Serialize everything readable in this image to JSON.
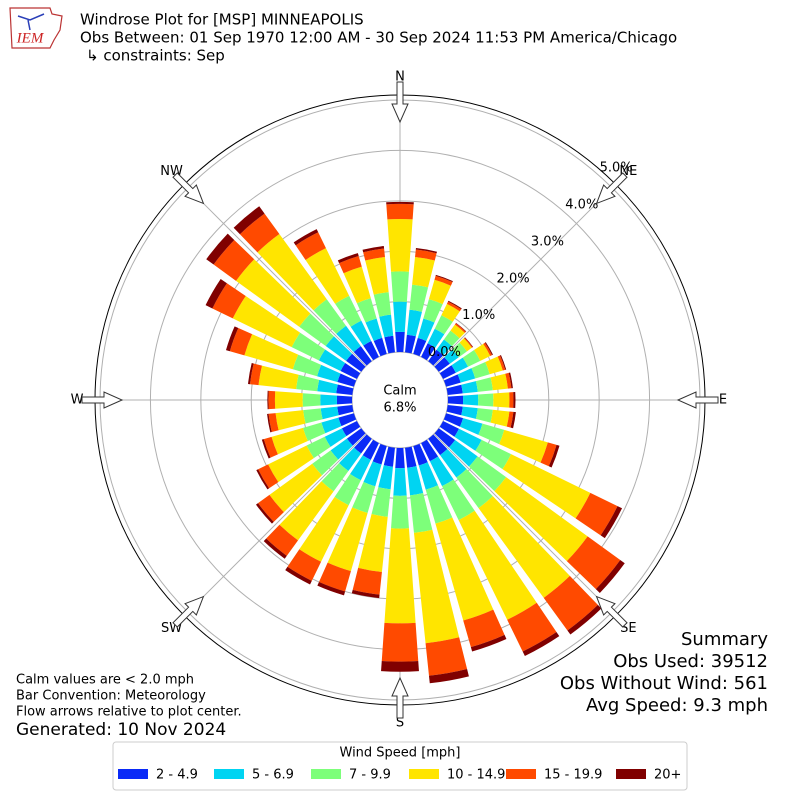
{
  "logo_text": "IEM",
  "chart_data": {
    "type": "windrose",
    "title": "Windrose Plot for [MSP] MINNEAPOLIS",
    "subtitle": "Obs Between: 01 Sep 1970 12:00 AM - 30 Sep 2024 11:53 PM America/Chicago",
    "constraints": "↳ constraints: Sep",
    "calm": {
      "label": "Calm",
      "value": 6.8,
      "value_label": "6.8%"
    },
    "x": [
      0,
      10,
      20,
      30,
      40,
      50,
      60,
      70,
      80,
      90,
      100,
      110,
      120,
      130,
      140,
      150,
      160,
      170,
      180,
      190,
      200,
      210,
      220,
      230,
      240,
      250,
      260,
      270,
      280,
      290,
      300,
      310,
      320,
      330,
      340,
      350
    ],
    "xlim": [
      0,
      360
    ],
    "xticks": [
      {
        "value": 0,
        "label": "N"
      },
      {
        "value": 45,
        "label": "NE"
      },
      {
        "value": 90,
        "label": "E"
      },
      {
        "value": 135,
        "label": "SE"
      },
      {
        "value": 180,
        "label": "S"
      },
      {
        "value": 225,
        "label": "SW"
      },
      {
        "value": 270,
        "label": "W"
      },
      {
        "value": 315,
        "label": "NW"
      }
    ],
    "ylim": [
      0,
      5.1
    ],
    "yticks": [
      {
        "value": 0,
        "label": "0.0%"
      },
      {
        "value": 1,
        "label": "1.0%"
      },
      {
        "value": 2,
        "label": "2.0%"
      },
      {
        "value": 3,
        "label": "3.0%"
      },
      {
        "value": 4,
        "label": "4.0%"
      },
      {
        "value": 5,
        "label": "5.0%"
      }
    ],
    "grid": true,
    "legend_title": "Wind Speed [mph]",
    "series": [
      {
        "name": "2 - 4.9",
        "color": "#0a2af7",
        "values": [
          0.4,
          0.35,
          0.33,
          0.3,
          0.28,
          0.27,
          0.28,
          0.3,
          0.3,
          0.3,
          0.3,
          0.35,
          0.35,
          0.4,
          0.4,
          0.4,
          0.4,
          0.4,
          0.4,
          0.38,
          0.38,
          0.37,
          0.36,
          0.35,
          0.33,
          0.32,
          0.3,
          0.3,
          0.32,
          0.34,
          0.36,
          0.37,
          0.37,
          0.35,
          0.33,
          0.33
        ]
      },
      {
        "name": "5 - 6.9",
        "color": "#00d4f2",
        "values": [
          0.6,
          0.5,
          0.4,
          0.32,
          0.25,
          0.22,
          0.27,
          0.3,
          0.3,
          0.3,
          0.3,
          0.4,
          0.5,
          0.55,
          0.55,
          0.55,
          0.5,
          0.55,
          0.55,
          0.45,
          0.45,
          0.45,
          0.43,
          0.4,
          0.38,
          0.35,
          0.33,
          0.33,
          0.38,
          0.42,
          0.48,
          0.5,
          0.5,
          0.45,
          0.4,
          0.42
        ]
      },
      {
        "name": "7 - 9.9",
        "color": "#7dff7a",
        "values": [
          0.6,
          0.5,
          0.4,
          0.3,
          0.22,
          0.2,
          0.27,
          0.3,
          0.3,
          0.3,
          0.3,
          0.45,
          0.65,
          0.7,
          0.75,
          0.75,
          0.7,
          0.75,
          0.65,
          0.55,
          0.55,
          0.55,
          0.5,
          0.45,
          0.4,
          0.38,
          0.35,
          0.35,
          0.42,
          0.5,
          0.6,
          0.65,
          0.65,
          0.55,
          0.42,
          0.45
        ]
      },
      {
        "name": "10 - 14.9",
        "color": "#ffe500",
        "values": [
          1.04,
          0.55,
          0.4,
          0.25,
          0.15,
          0.12,
          0.22,
          0.27,
          0.3,
          0.32,
          0.33,
          0.9,
          1.75,
          2.0,
          2.2,
          2.2,
          2.0,
          2.2,
          1.88,
          1.1,
          1.2,
          1.25,
          1.2,
          1.05,
          0.85,
          0.65,
          0.55,
          0.55,
          0.75,
          1.0,
          1.3,
          1.55,
          1.6,
          1.05,
          0.65,
          0.7
        ]
      },
      {
        "name": "15 - 19.9",
        "color": "#ff4a00",
        "values": [
          0.3,
          0.15,
          0.08,
          0.05,
          0.03,
          0.02,
          0.04,
          0.05,
          0.07,
          0.08,
          0.08,
          0.18,
          0.6,
          0.8,
          0.8,
          0.7,
          0.55,
          0.65,
          0.76,
          0.45,
          0.42,
          0.42,
          0.38,
          0.28,
          0.22,
          0.16,
          0.14,
          0.13,
          0.17,
          0.3,
          0.45,
          0.55,
          0.5,
          0.35,
          0.22,
          0.17
        ]
      },
      {
        "name": "20+",
        "color": "#800000",
        "values": [
          0.04,
          0.03,
          0.02,
          0.02,
          0.01,
          0.01,
          0.02,
          0.02,
          0.03,
          0.04,
          0.05,
          0.06,
          0.1,
          0.11,
          0.1,
          0.1,
          0.09,
          0.15,
          0.2,
          0.07,
          0.08,
          0.08,
          0.07,
          0.05,
          0.04,
          0.04,
          0.03,
          0.02,
          0.04,
          0.08,
          0.15,
          0.18,
          0.18,
          0.07,
          0.06,
          0.05
        ]
      }
    ],
    "summary": [
      "Summary",
      "Obs Used: 39512",
      "Obs Without Wind: 561",
      "Avg Speed: 9.3 mph"
    ],
    "notes": [
      "Calm values are < 2.0 mph",
      "Bar Convention: Meteorology",
      "Flow arrows relative to plot center."
    ],
    "generated": "Generated: 10 Nov 2024"
  }
}
